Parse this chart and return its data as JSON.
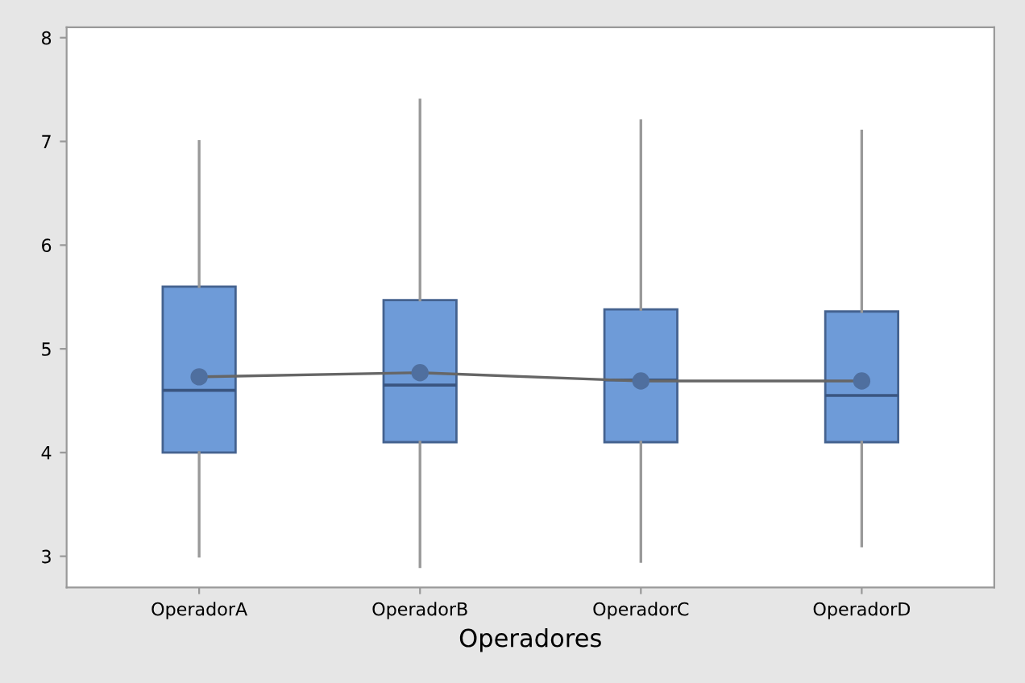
{
  "chart_data": {
    "type": "box",
    "xlabel": "Operadores",
    "categories": [
      "OperadorA",
      "OperadorB",
      "OperadorC",
      "OperadorD"
    ],
    "color": "#6e9bd8",
    "boxes": [
      {
        "low": 3.0,
        "q1": 4.0,
        "median": 4.6,
        "q3": 5.6,
        "high": 7.0
      },
      {
        "low": 2.9,
        "q1": 4.1,
        "median": 4.65,
        "q3": 5.47,
        "high": 7.4
      },
      {
        "low": 2.95,
        "q1": 4.1,
        "median": 4.7,
        "q3": 5.38,
        "high": 7.2
      },
      {
        "low": 3.1,
        "q1": 4.1,
        "median": 4.55,
        "q3": 5.36,
        "high": 7.1
      }
    ],
    "series": [
      {
        "type": "line",
        "color": "#4f6f9f",
        "marker": "circle",
        "values": [
          4.73,
          4.77,
          4.69,
          4.69
        ]
      }
    ],
    "ylim": [
      2.7,
      8.1
    ],
    "yticks": [
      3,
      4,
      5,
      6,
      7,
      8
    ],
    "grid": false,
    "legend": false
  }
}
